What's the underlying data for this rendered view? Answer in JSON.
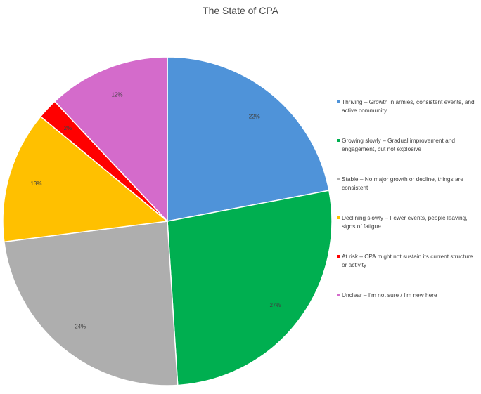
{
  "chart_data": {
    "type": "pie",
    "title": "The State of CPA",
    "legend_position": "right",
    "slices": [
      {
        "label": "Thriving – Growth in armies, consistent events, and active community",
        "value": 22,
        "display": "22%",
        "color": "#4F93D9"
      },
      {
        "label": "Growing slowly – Gradual improvement and engagement, but not explosive",
        "value": 27,
        "display": "27%",
        "color": "#00AF50"
      },
      {
        "label": "Stable – No major growth or decline, things are consistent",
        "value": 24,
        "display": "24%",
        "color": "#AEAEAE"
      },
      {
        "label": "Declining slowly – Fewer events, people leaving, signs of fatigue",
        "value": 13,
        "display": "13%",
        "color": "#FFC000"
      },
      {
        "label": "At risk – CPA might not sustain its current structure or activity",
        "value": 2,
        "display": "2%",
        "color": "#FF0000"
      },
      {
        "label": "Unclear – I’m not sure / I’m new here",
        "value": 12,
        "display": "12%",
        "color": "#D46BCB"
      }
    ]
  }
}
